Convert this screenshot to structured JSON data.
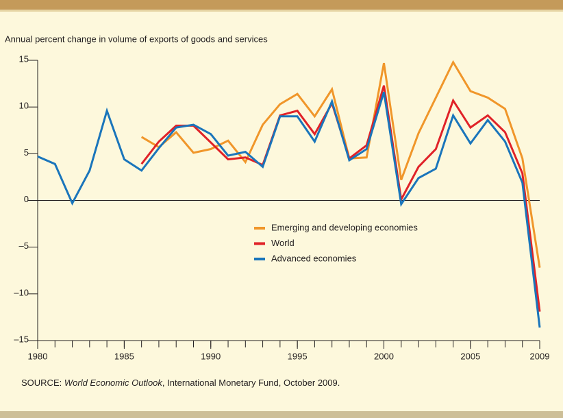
{
  "chart_data": {
    "type": "line",
    "subtitle": "Annual percent change in volume of exports of goods and services",
    "x": [
      1980,
      1981,
      1982,
      1983,
      1984,
      1985,
      1986,
      1987,
      1988,
      1989,
      1990,
      1991,
      1992,
      1993,
      1994,
      1995,
      1996,
      1997,
      1998,
      1999,
      2000,
      2001,
      2002,
      2003,
      2004,
      2005,
      2006,
      2007,
      2008,
      2009
    ],
    "xlim": [
      1980,
      2009
    ],
    "xticks": [
      1980,
      1985,
      1990,
      1995,
      2000,
      2005,
      2009
    ],
    "ylim": [
      -15,
      15
    ],
    "yticks": [
      {
        "value": -15,
        "label": "–15"
      },
      {
        "value": -10,
        "label": "–10"
      },
      {
        "value": -5,
        "label": "–5"
      },
      0,
      5,
      10,
      15
    ],
    "zero_line": true,
    "series": [
      {
        "name": "Emerging and developing economies",
        "color": "#f0962a",
        "values": [
          null,
          null,
          null,
          null,
          null,
          null,
          6.8,
          5.7,
          7.3,
          5.1,
          5.5,
          6.4,
          4.1,
          8.1,
          10.3,
          11.4,
          9.0,
          11.9,
          4.5,
          4.6,
          14.7,
          2.2,
          7.2,
          11.0,
          14.8,
          11.7,
          11.0,
          9.8,
          4.5,
          -7.2
        ]
      },
      {
        "name": "World",
        "color": "#e02228",
        "values": [
          null,
          null,
          null,
          null,
          null,
          null,
          3.9,
          6.3,
          8.0,
          8.0,
          6.2,
          4.4,
          4.6,
          3.8,
          9.1,
          9.6,
          7.1,
          10.4,
          4.5,
          5.9,
          12.3,
          0.1,
          3.6,
          5.5,
          10.7,
          7.8,
          9.1,
          7.3,
          2.9,
          -11.9
        ]
      },
      {
        "name": "Advanced economies",
        "color": "#1a75bb",
        "values": [
          4.7,
          3.9,
          -0.3,
          3.2,
          9.6,
          4.4,
          3.2,
          5.6,
          7.8,
          8.1,
          7.1,
          4.8,
          5.2,
          3.6,
          9.0,
          9.0,
          6.3,
          10.6,
          4.3,
          5.5,
          11.6,
          -0.4,
          2.4,
          3.4,
          9.1,
          6.1,
          8.6,
          6.3,
          1.9,
          -13.6
        ]
      }
    ],
    "source_label": "SOURCE:",
    "source_title": "World Economic Outlook",
    "source_rest": ", International Monetary Fund, October 2009."
  }
}
